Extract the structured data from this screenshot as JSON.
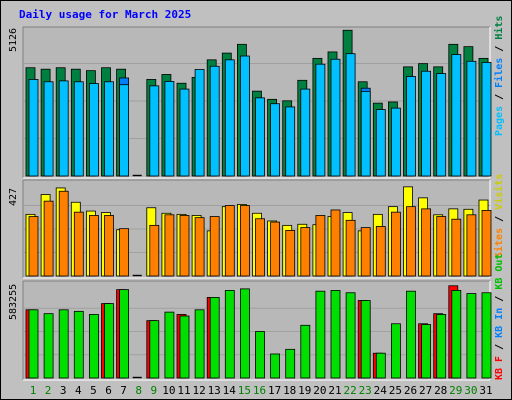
{
  "title": "Daily usage for March 2025",
  "colors": {
    "background": "#c0c0c0",
    "plot": "#b8b8b8",
    "hits": "#008040",
    "files": "#00c0ff",
    "pages": "#0080ff",
    "visits": "#ffff00",
    "sites": "#ff8000",
    "kb_in": "#00e000",
    "kb_out": "#ff0000",
    "title": "#0000ff",
    "weekend_day": "#008000"
  },
  "chart_data": [
    {
      "type": "bar",
      "name": "hits-files-pages",
      "ymax_label": "5126",
      "ylim": [
        0,
        5126
      ],
      "categories": [
        "1",
        "2",
        "3",
        "4",
        "5",
        "6",
        "7",
        "8",
        "9",
        "10",
        "11",
        "12",
        "13",
        "14",
        "15",
        "16",
        "17",
        "18",
        "19",
        "20",
        "21",
        "22",
        "23",
        "24",
        "25",
        "26",
        "27",
        "28",
        "29",
        "30",
        "31"
      ],
      "weekend_days": [
        "1",
        "2",
        "8",
        "9",
        "15",
        "16",
        "22",
        "23",
        "29",
        "30"
      ],
      "legend": [
        "Pages",
        "Files",
        "Hits"
      ],
      "series": [
        {
          "name": "Hits",
          "values": [
            3700,
            3650,
            3700,
            3650,
            3600,
            3700,
            3650,
            0,
            3300,
            3470,
            3170,
            3370,
            3970,
            4200,
            4500,
            2900,
            2620,
            2570,
            3270,
            4020,
            4240,
            4980,
            3220,
            2490,
            2530,
            3730,
            3840,
            3730,
            4500,
            4420,
            4020
          ]
        },
        {
          "name": "Files",
          "values": [
            3300,
            3220,
            3250,
            3220,
            3160,
            3220,
            3120,
            0,
            3080,
            3230,
            2970,
            3640,
            3750,
            3970,
            4100,
            2670,
            2470,
            2360,
            2970,
            3820,
            3990,
            4180,
            2890,
            2270,
            2320,
            3400,
            3580,
            3500,
            4150,
            3920,
            3880
          ]
        },
        {
          "name": "Pages",
          "values": [
            0,
            0,
            0,
            0,
            0,
            0,
            3350,
            0,
            0,
            0,
            0,
            0,
            0,
            0,
            0,
            0,
            0,
            0,
            0,
            0,
            0,
            0,
            3000,
            0,
            0,
            0,
            0,
            0,
            0,
            0,
            0
          ]
        }
      ]
    },
    {
      "type": "bar",
      "name": "visits-sites",
      "ymax_label": "427",
      "ylim": [
        0,
        427
      ],
      "categories": [
        "1",
        "2",
        "3",
        "4",
        "5",
        "6",
        "7",
        "8",
        "9",
        "10",
        "11",
        "12",
        "13",
        "14",
        "15",
        "16",
        "17",
        "18",
        "19",
        "20",
        "21",
        "22",
        "23",
        "24",
        "25",
        "26",
        "27",
        "28",
        "29",
        "30",
        "31"
      ],
      "legend": [
        "Sites",
        "Visits"
      ],
      "series": [
        {
          "name": "Visits",
          "values": [
            280,
            370,
            400,
            335,
            295,
            288,
            210,
            0,
            310,
            285,
            280,
            275,
            205,
            315,
            325,
            285,
            250,
            230,
            235,
            233,
            270,
            288,
            205,
            280,
            315,
            405,
            355,
            278,
            305,
            303,
            345
          ]
        },
        {
          "name": "Sites",
          "values": [
            270,
            340,
            385,
            290,
            275,
            275,
            215,
            0,
            230,
            278,
            275,
            265,
            270,
            320,
            320,
            260,
            245,
            207,
            220,
            275,
            300,
            253,
            220,
            225,
            290,
            315,
            305,
            270,
            258,
            278,
            298
          ]
        }
      ]
    },
    {
      "type": "bar",
      "name": "kbytes",
      "ymax_label": "583255",
      "ylim": [
        0,
        583255
      ],
      "categories": [
        "1",
        "2",
        "3",
        "4",
        "5",
        "6",
        "7",
        "8",
        "9",
        "10",
        "11",
        "12",
        "13",
        "14",
        "15",
        "16",
        "17",
        "18",
        "19",
        "20",
        "21",
        "22",
        "23",
        "24",
        "25",
        "26",
        "27",
        "28",
        "29",
        "30",
        "31"
      ],
      "legend": [
        "KB F",
        "KB In",
        "KB Out"
      ],
      "series": [
        {
          "name": "KB In",
          "values": [
            440,
            415,
            440,
            430,
            410,
            480,
            570,
            0,
            370,
            425,
            400,
            440,
            520,
            565,
            575,
            300,
            155,
            185,
            340,
            560,
            565,
            550,
            500,
            160,
            350,
            560,
            345,
            410,
            565,
            545,
            550
          ]
        },
        {
          "name": "KB F",
          "values": [
            440,
            0,
            0,
            0,
            0,
            480,
            570,
            0,
            370,
            0,
            410,
            0,
            520,
            0,
            0,
            0,
            0,
            0,
            0,
            0,
            0,
            0,
            500,
            160,
            0,
            0,
            350,
            415,
            595,
            0,
            0
          ]
        }
      ]
    }
  ]
}
